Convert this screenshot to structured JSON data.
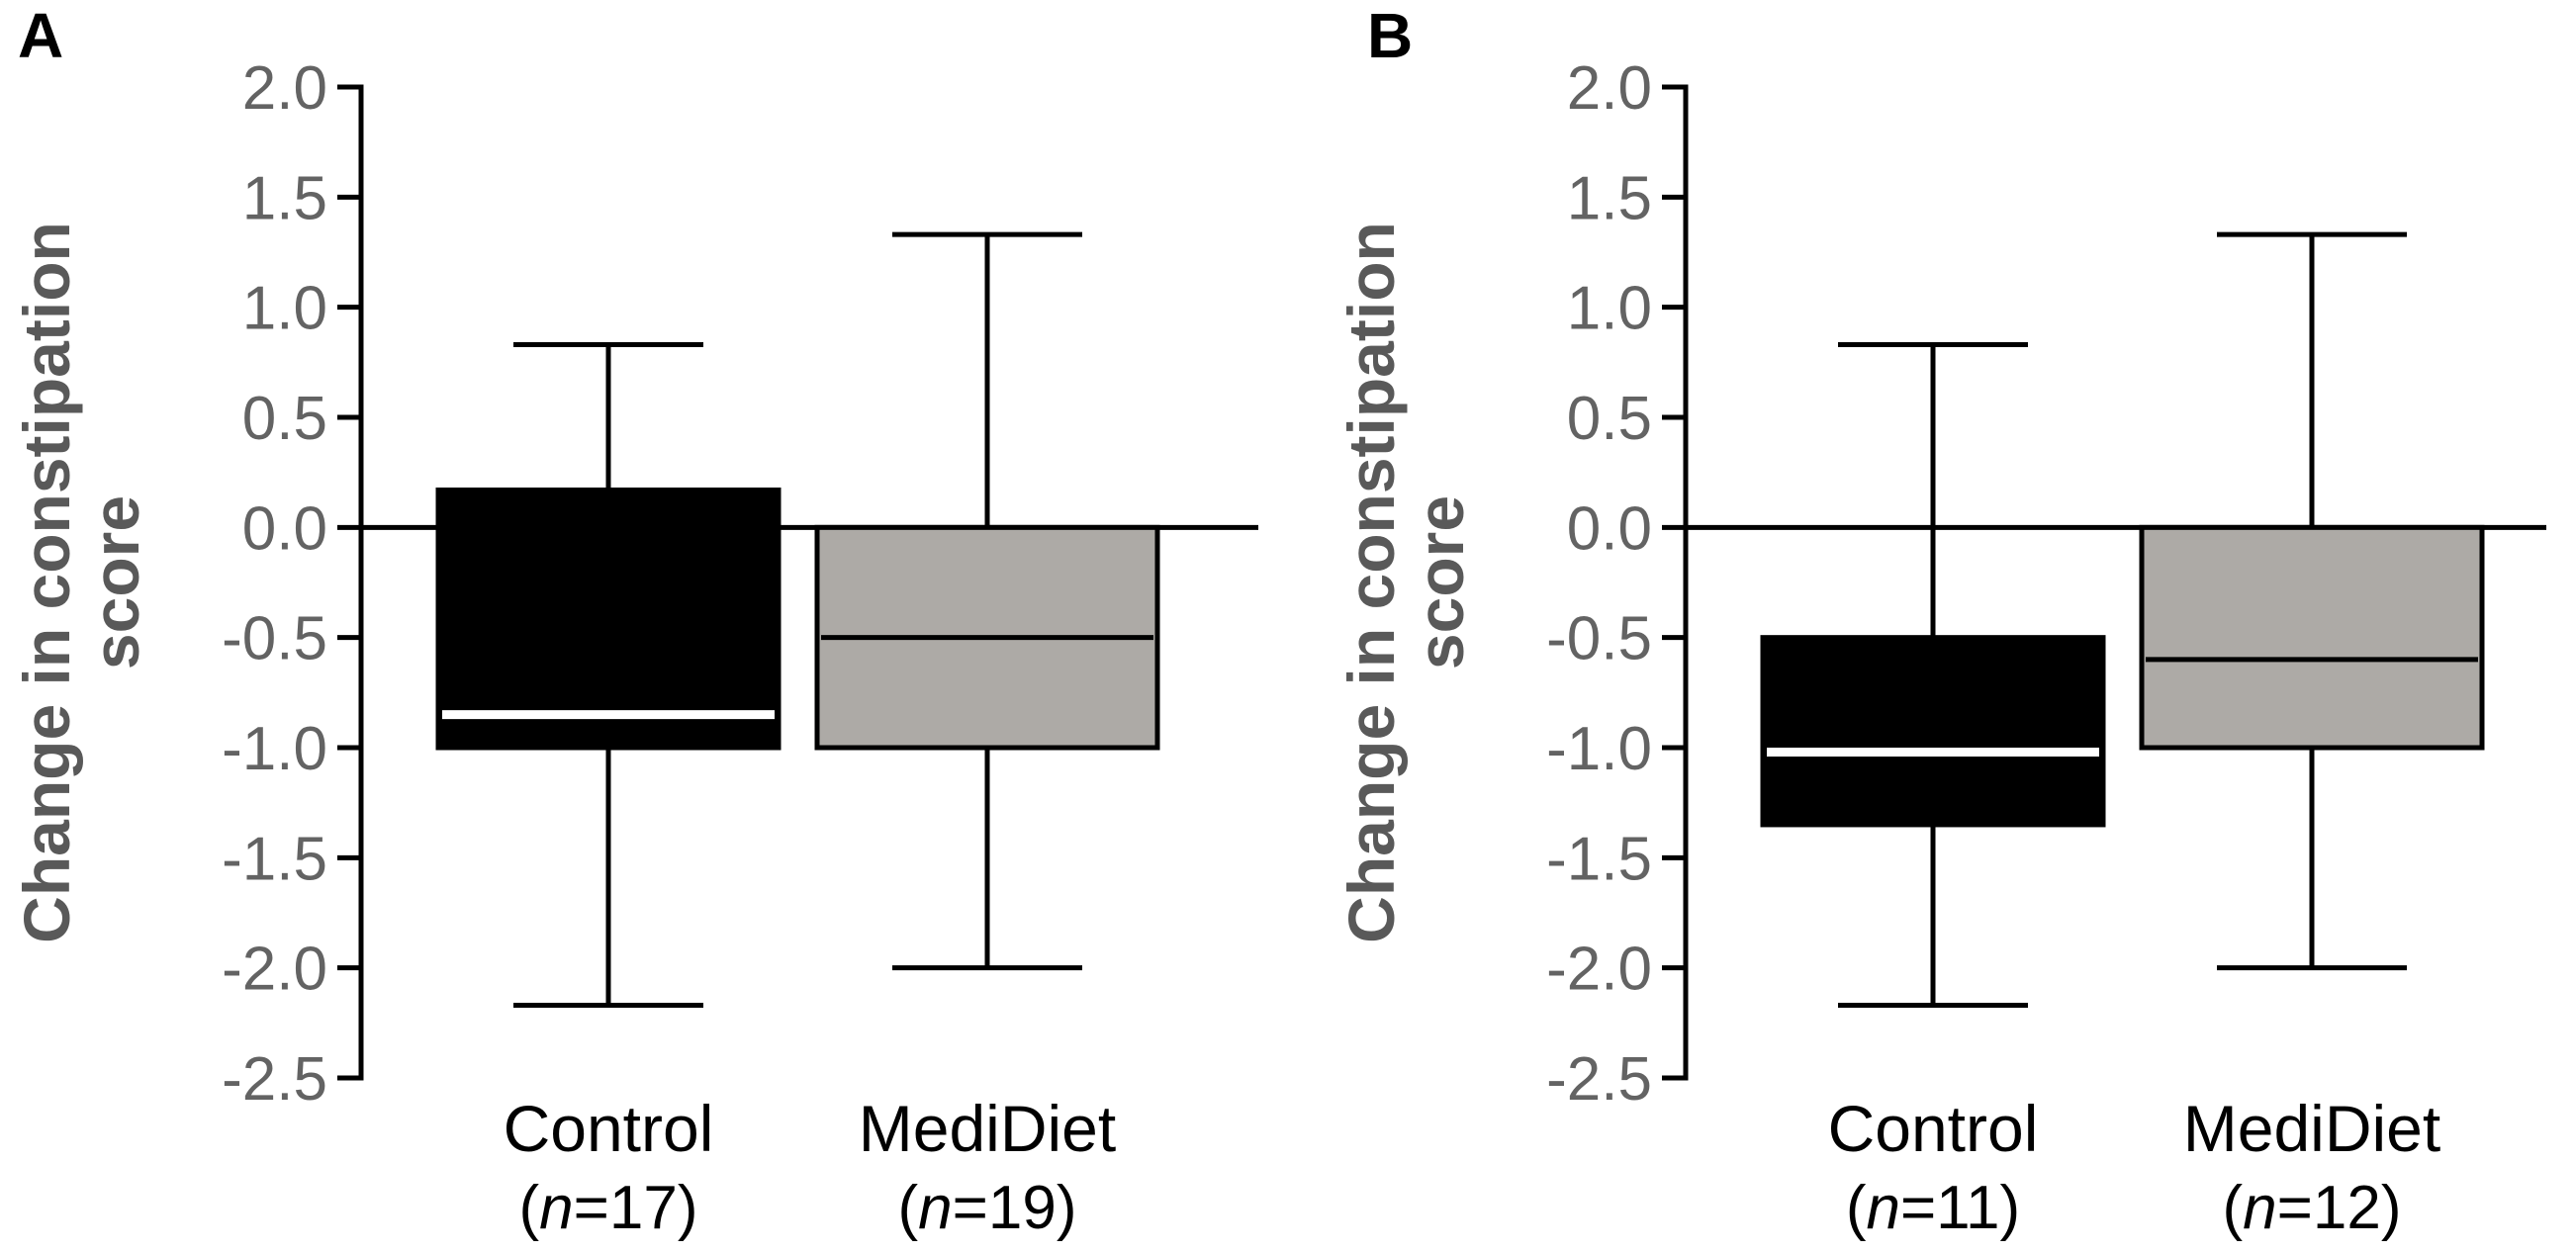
{
  "figure": {
    "background": "#ffffff",
    "colors": {
      "axis_line": "#000000",
      "tick_label": "#636363",
      "axis_title": "#595959",
      "category_label": "#000000",
      "box_black": "#000000",
      "box_gray": "#adaaa6",
      "median_on_black": "#ffffff",
      "median_on_gray": "#000000"
    }
  },
  "chart_data": [
    {
      "type": "boxplot",
      "panel_letter": "A",
      "ylabel_lines": [
        "Change in constipation",
        "score"
      ],
      "ylim": [
        -2.5,
        2.0
      ],
      "yticks": [
        2.0,
        1.5,
        1.0,
        0.5,
        0.0,
        -0.5,
        -1.0,
        -1.5,
        -2.0,
        -2.5
      ],
      "zero_line": 0.0,
      "grid": false,
      "groups": [
        {
          "label": "Control",
          "n": 17,
          "fill": "#000000",
          "median_color": "#ffffff",
          "whisker_low": -2.17,
          "q1": -1.0,
          "median": -0.85,
          "q3": 0.17,
          "whisker_high": 0.83
        },
        {
          "label": "MediDiet",
          "n": 19,
          "fill": "#adaaa6",
          "median_color": "#000000",
          "whisker_low": -2.0,
          "q1": -1.0,
          "median": -0.5,
          "q3": 0.0,
          "whisker_high": 1.33
        }
      ]
    },
    {
      "type": "boxplot",
      "panel_letter": "B",
      "ylabel_lines": [
        "Change in constipation",
        "score"
      ],
      "ylim": [
        -2.5,
        2.0
      ],
      "yticks": [
        2.0,
        1.5,
        1.0,
        0.5,
        0.0,
        -0.5,
        -1.0,
        -1.5,
        -2.0,
        -2.5
      ],
      "zero_line": 0.0,
      "grid": false,
      "groups": [
        {
          "label": "Control",
          "n": 11,
          "fill": "#000000",
          "median_color": "#ffffff",
          "whisker_low": -2.17,
          "q1": -1.35,
          "median": -1.02,
          "q3": -0.5,
          "whisker_high": 0.83
        },
        {
          "label": "MediDiet",
          "n": 12,
          "fill": "#adaaa6",
          "median_color": "#000000",
          "whisker_low": -2.0,
          "q1": -1.0,
          "median": -0.6,
          "q3": 0.0,
          "whisker_high": 1.33
        }
      ]
    }
  ]
}
